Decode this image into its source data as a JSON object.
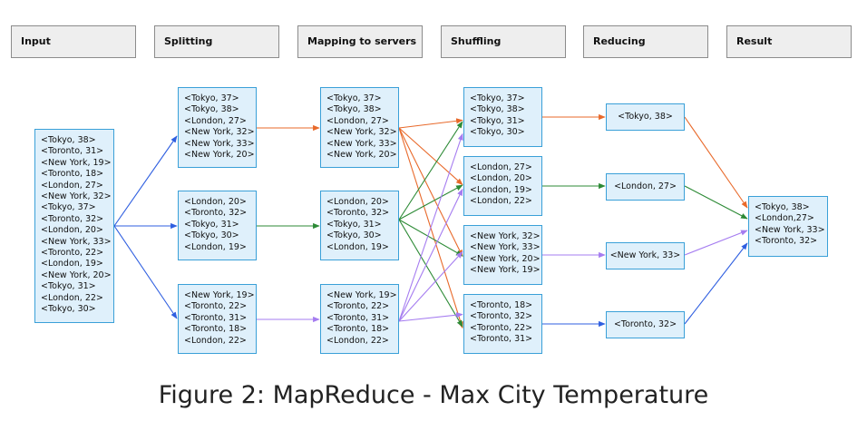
{
  "stages": [
    "Input",
    "Splitting",
    "Mapping to servers",
    "Shuffling",
    "Reducing",
    "Result"
  ],
  "input": [
    "<Tokyo, 38>",
    "<Toronto, 31>",
    "<New York, 19>",
    "<Toronto, 18>",
    "<London, 27>",
    "<New York, 32>",
    "<Tokyo, 37>",
    "<Toronto, 32>",
    "<London, 20>",
    "<New York, 33>",
    "<Toronto, 22>",
    "<London, 19>",
    "<New York, 20>",
    "<Tokyo, 31>",
    "<London, 22>",
    "<Tokyo, 30>"
  ],
  "splitting": [
    [
      "<Tokyo, 37>",
      "<Tokyo, 38>",
      "<London, 27>",
      "<New York, 32>",
      "<New York, 33>",
      "<New York, 20>"
    ],
    [
      "<London, 20>",
      "<Toronto, 32>",
      "<Tokyo, 31>",
      "<Tokyo, 30>",
      "<London, 19>"
    ],
    [
      "<New York, 19>",
      "<Toronto, 22>",
      "<Toronto, 31>",
      "<Toronto, 18>",
      "<London, 22>"
    ]
  ],
  "mapping": [
    [
      "<Tokyo, 37>",
      "<Tokyo, 38>",
      "<London, 27>",
      "<New York, 32>",
      "<New York, 33>",
      "<New York, 20>"
    ],
    [
      "<London, 20>",
      "<Toronto, 32>",
      "<Tokyo, 31>",
      "<Tokyo, 30>",
      "<London, 19>"
    ],
    [
      "<New York, 19>",
      "<Toronto, 22>",
      "<Toronto, 31>",
      "<Toronto, 18>",
      "<London, 22>"
    ]
  ],
  "shuffling": [
    [
      "<Tokyo, 37>",
      "<Tokyo, 38>",
      "<Tokyo, 31>",
      "<Tokyo, 30>"
    ],
    [
      "<London, 27>",
      "<London, 20>",
      "<London, 19>",
      "<London, 22>"
    ],
    [
      "<New York, 32>",
      "<New York, 33>",
      "<New York, 20>",
      "<New York, 19>"
    ],
    [
      "<Toronto, 18>",
      "<Toronto, 32>",
      "<Toronto, 22>",
      "<Toronto, 31>"
    ]
  ],
  "reducing": [
    "<Tokyo, 38>",
    "<London, 27>",
    "<New York, 33>",
    "<Toronto, 32>"
  ],
  "result": [
    "<Tokyo, 38>",
    "<London,27>",
    "<New York, 33>",
    "<Toronto, 32>"
  ],
  "caption": "Figure 2: MapReduce - Max City Temperature",
  "colors": {
    "box_fill": "#dff0fb",
    "box_border": "#3aa0d8",
    "header_fill": "#eeeeee",
    "arrow_blue": "#2f5fe0",
    "arrow_orange": "#e8692a",
    "arrow_green": "#2c8a35",
    "arrow_purple": "#a57cf0"
  }
}
